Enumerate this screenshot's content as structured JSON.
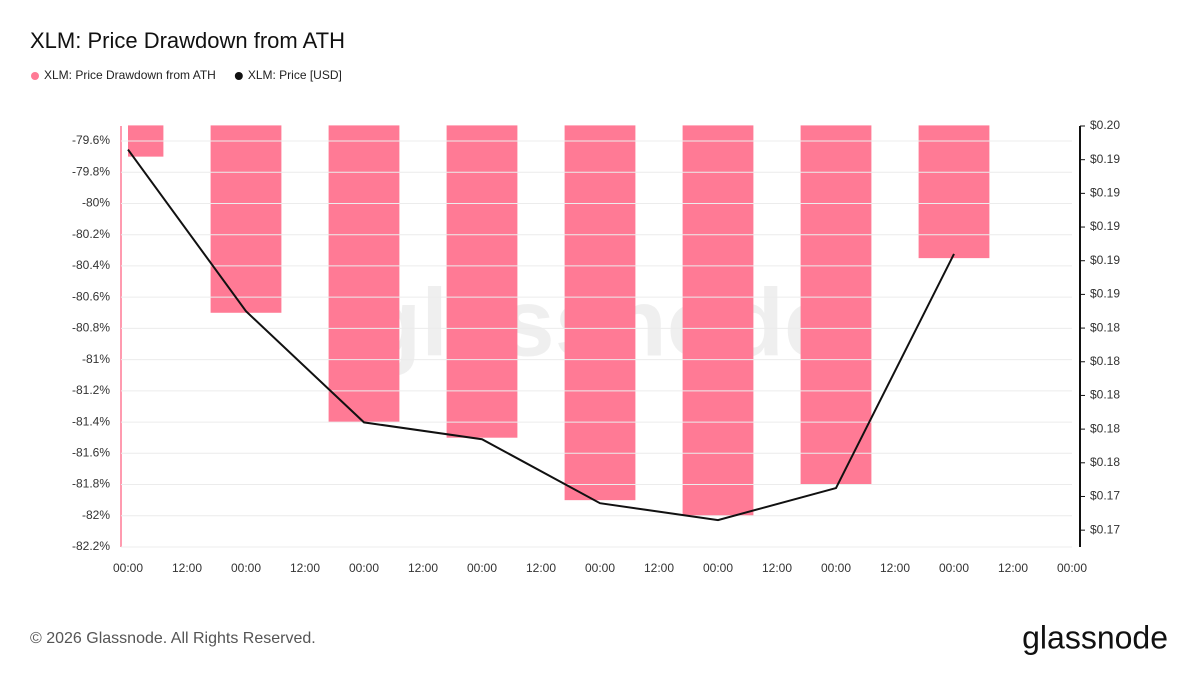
{
  "chart_data": {
    "type": "bar",
    "title": "XLM: Price Drawdown from ATH",
    "watermark": "glassnode",
    "x": [
      0,
      24,
      48,
      72,
      96,
      120,
      144,
      168
    ],
    "xlim": [
      0,
      192
    ],
    "xticks": [
      {
        "value": 0,
        "label": "00:00"
      },
      {
        "value": 12,
        "label": "12:00"
      },
      {
        "value": 24,
        "label": "00:00"
      },
      {
        "value": 36,
        "label": "12:00"
      },
      {
        "value": 48,
        "label": "00:00"
      },
      {
        "value": 60,
        "label": "12:00"
      },
      {
        "value": 72,
        "label": "00:00"
      },
      {
        "value": 84,
        "label": "12:00"
      },
      {
        "value": 96,
        "label": "00:00"
      },
      {
        "value": 108,
        "label": "12:00"
      },
      {
        "value": 120,
        "label": "00:00"
      },
      {
        "value": 132,
        "label": "12:00"
      },
      {
        "value": 144,
        "label": "00:00"
      },
      {
        "value": 156,
        "label": "12:00"
      },
      {
        "value": 168,
        "label": "00:00"
      },
      {
        "value": 180,
        "label": "12:00"
      },
      {
        "value": 192,
        "label": "00:00"
      }
    ],
    "ylim": [
      -82.2,
      -79.5
    ],
    "yticks": [
      {
        "value": -79.6,
        "label": "-79.6%"
      },
      {
        "value": -79.8,
        "label": "-79.8%"
      },
      {
        "value": -80,
        "label": "-80%"
      },
      {
        "value": -80.2,
        "label": "-80.2%"
      },
      {
        "value": -80.4,
        "label": "-80.4%"
      },
      {
        "value": -80.6,
        "label": "-80.6%"
      },
      {
        "value": -80.8,
        "label": "-80.8%"
      },
      {
        "value": -81,
        "label": "-81%"
      },
      {
        "value": -81.2,
        "label": "-81.2%"
      },
      {
        "value": -81.4,
        "label": "-81.4%"
      },
      {
        "value": -81.6,
        "label": "-81.6%"
      },
      {
        "value": -81.8,
        "label": "-81.8%"
      },
      {
        "value": -82,
        "label": "-82%"
      },
      {
        "value": -82.2,
        "label": "-82.2%"
      }
    ],
    "y2lim": [
      0.171,
      0.196
    ],
    "y2ticks": [
      {
        "value": 0.196,
        "label": "$0.20"
      },
      {
        "value": 0.194,
        "label": "$0.19"
      },
      {
        "value": 0.192,
        "label": "$0.19"
      },
      {
        "value": 0.19,
        "label": "$0.19"
      },
      {
        "value": 0.188,
        "label": "$0.19"
      },
      {
        "value": 0.186,
        "label": "$0.19"
      },
      {
        "value": 0.184,
        "label": "$0.18"
      },
      {
        "value": 0.182,
        "label": "$0.18"
      },
      {
        "value": 0.18,
        "label": "$0.18"
      },
      {
        "value": 0.178,
        "label": "$0.18"
      },
      {
        "value": 0.176,
        "label": "$0.18"
      },
      {
        "value": 0.174,
        "label": "$0.17"
      },
      {
        "value": 0.172,
        "label": "$0.17"
      }
    ],
    "grid": true,
    "series": [
      {
        "name": "XLM: Price Drawdown from ATH",
        "type": "bar",
        "color": "#ff7a95",
        "values": [
          -79.7,
          -80.7,
          -81.4,
          -81.5,
          -81.9,
          -82.0,
          -81.8,
          -80.35
        ]
      },
      {
        "name": "XLM: Price [USD]",
        "type": "line",
        "axis": "y2",
        "color": "#111111",
        "values": [
          0.1946,
          0.185,
          0.1784,
          0.1774,
          0.1736,
          0.1726,
          0.1745,
          0.1884
        ]
      }
    ]
  },
  "footer": "© 2026 Glassnode. All Rights Reserved.",
  "logo": "glassnode"
}
